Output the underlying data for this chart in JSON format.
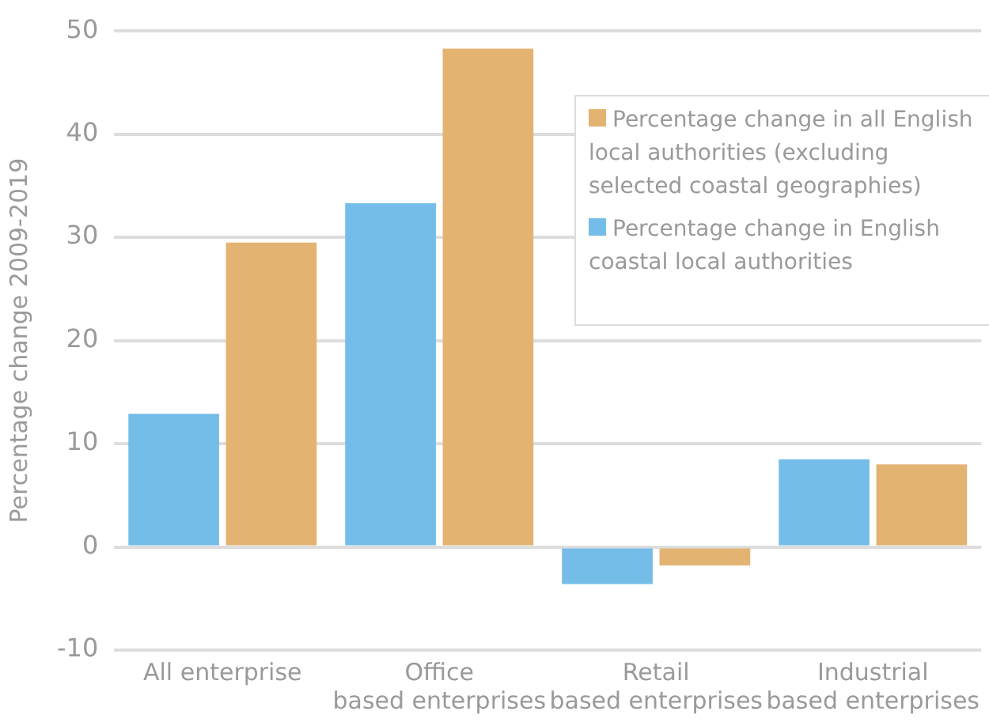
{
  "chart_data": {
    "type": "bar",
    "ylabel": "Percentage change 2009-2019",
    "categories": [
      "All enterprise",
      "Office based enterprises",
      "Retail based enterprises",
      "Industrial based enterprises"
    ],
    "series": [
      {
        "name": "Percentage change in English coastal local authorities",
        "color": "#74bde8",
        "values": [
          12.9,
          33.3,
          -3.6,
          8.5
        ]
      },
      {
        "name": "Percentage change in all English local authorities (excluding selected coastal geographies)",
        "color": "#e3b372",
        "values": [
          29.5,
          48.3,
          -1.8,
          8.0
        ]
      }
    ],
    "ylim": [
      -10,
      50
    ],
    "yticks": [
      -10,
      0,
      10,
      20,
      30,
      40,
      50
    ],
    "grid": "y",
    "legend": "top right"
  }
}
